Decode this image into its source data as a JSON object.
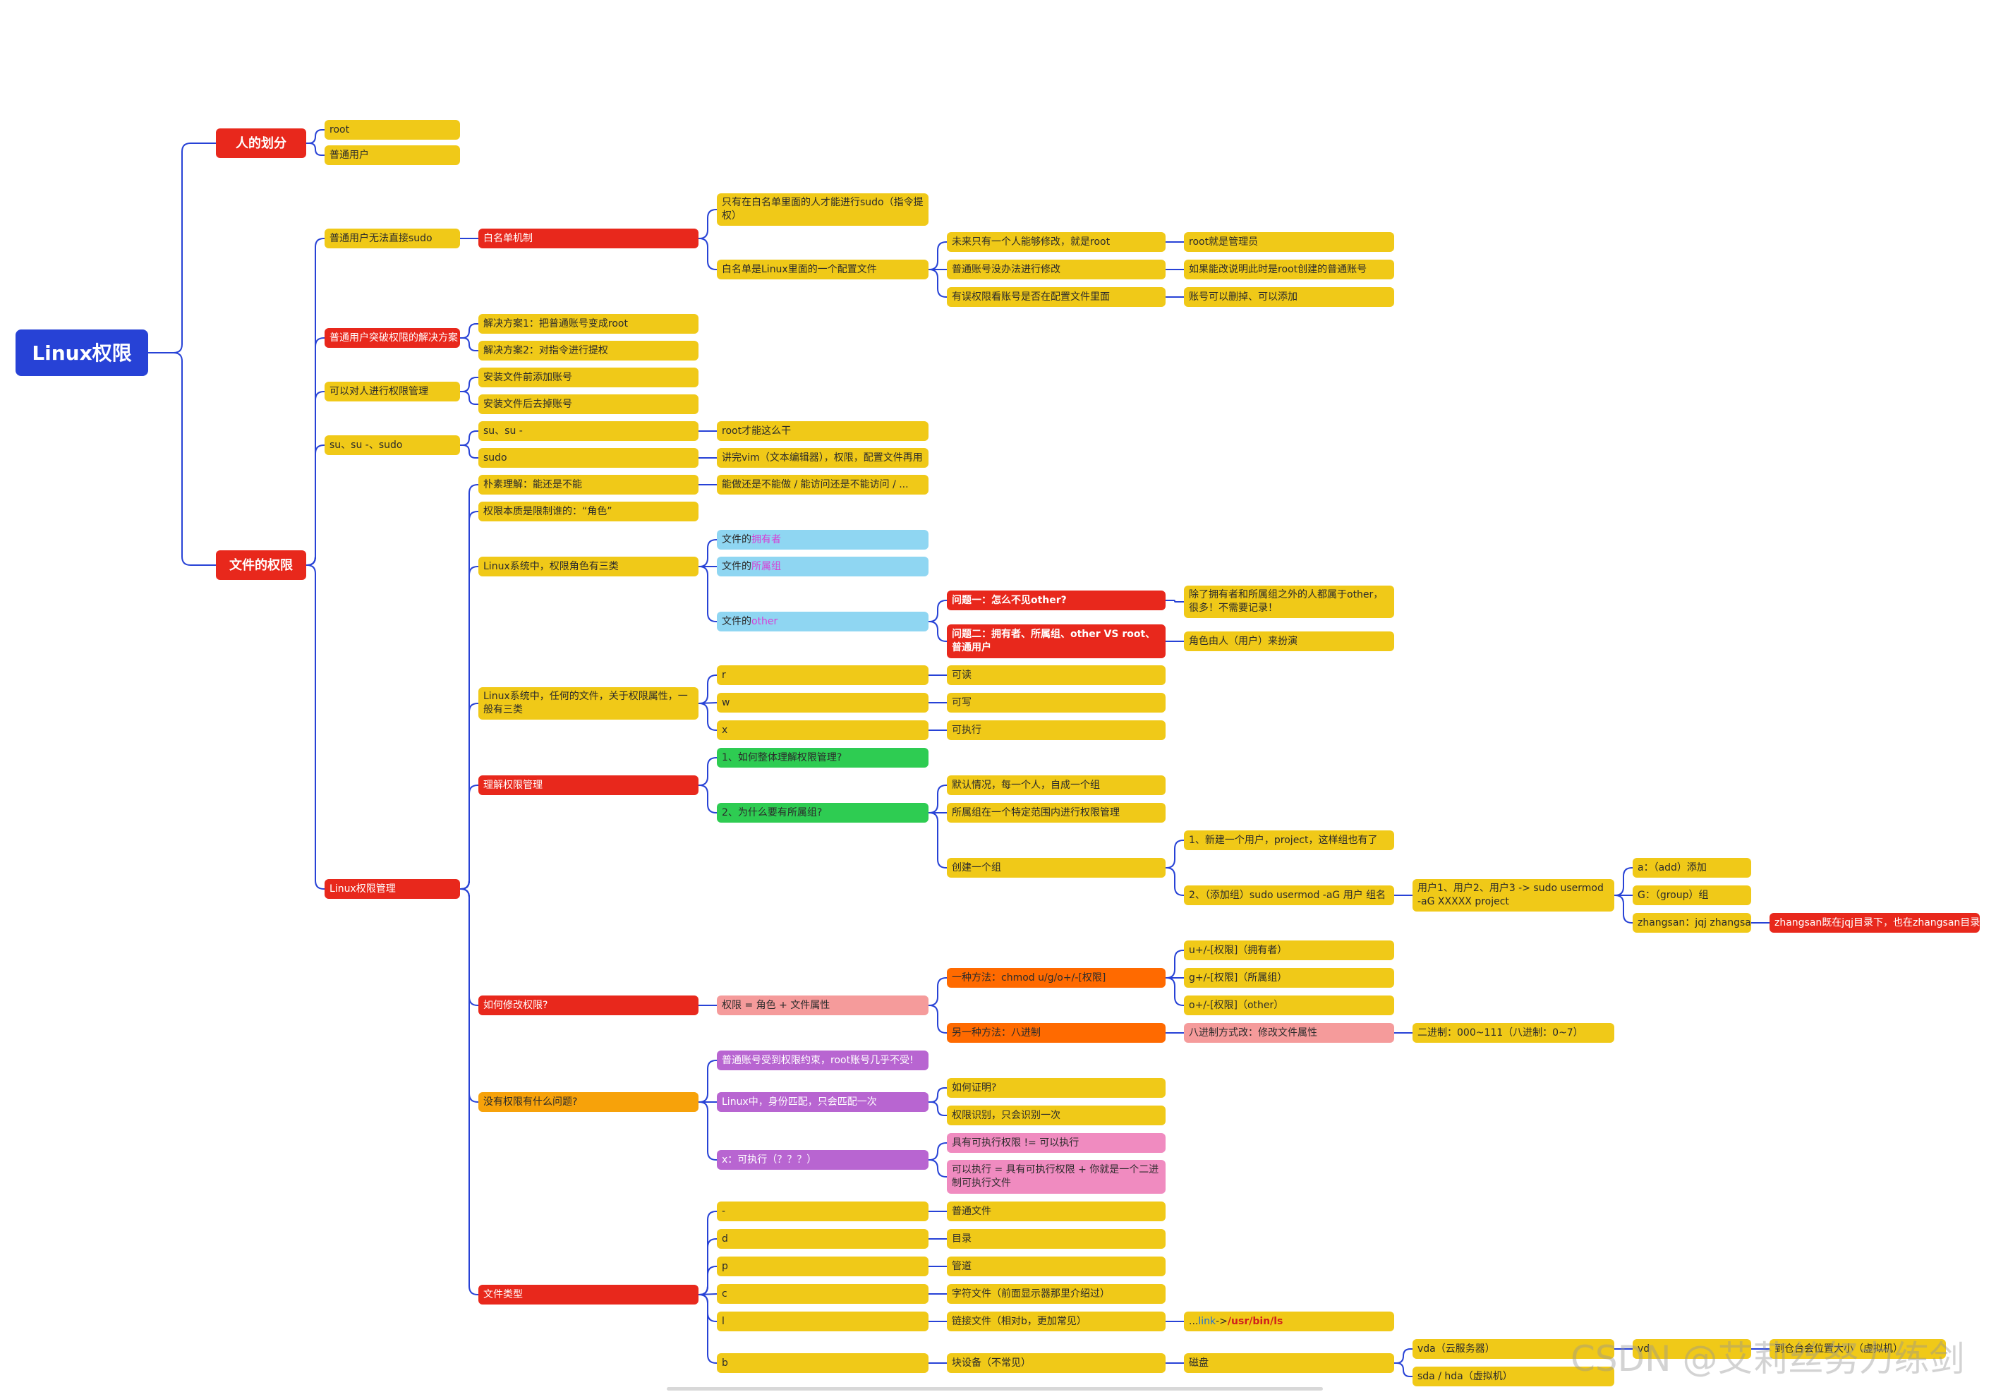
{
  "root": "Linux权限",
  "people": {
    "label": "人的划分",
    "root_user": "root",
    "normal_user": "普通用户"
  },
  "file_perm": {
    "label": "文件的权限",
    "sudo": {
      "label": "普通用户无法直接sudo",
      "whitelist": "白名单机制",
      "only_whitelist": "只有在白名单里面的人才能进行sudo（指令提权）",
      "config_file": "白名单是Linux里面的一个配置文件",
      "future_root": "未来只有一个人能够修改，就是root",
      "root_admin": "root就是管理员",
      "normal_cannot": "普通账号没办法进行修改",
      "created_by_root": "如果能改说明此时是root创建的普通账号",
      "check_config": "有误权限看账号是否在配置文件里面",
      "can_delete_add": "账号可以删掉、可以添加"
    },
    "solution": {
      "label": "普通用户突破权限的解决方案",
      "s1": "解决方案1：把普通账号变成root",
      "s2": "解决方案2：对指令进行提权"
    },
    "manage": {
      "label": "可以对人进行权限管理",
      "add": "安装文件前添加账号",
      "remove": "安装文件后去掉账号"
    },
    "su": {
      "label": "su、su -、sudo",
      "su_item": "su、su -",
      "su_desc": "root才能这么干",
      "sudo_item": "sudo",
      "sudo_desc": "讲完vim（文本编辑器），权限，配置文件再用"
    },
    "linux": {
      "label": "Linux权限管理",
      "simple": "朴素理解：能还是不能",
      "simple_desc": "能做还是不能做 / 能访问还是不能访问 / ...",
      "essence": "权限本质是限制谁的：“角色”",
      "roles": {
        "label": "Linux系统中，权限角色有三类",
        "owner_pre": "文件的",
        "owner_hl": "拥有者",
        "group_pre": "文件的",
        "group_hl": "所属组",
        "other_pre": "文件的",
        "other_hl": "other",
        "q1": "问题一：怎么不见other?",
        "q1_ans": "除了拥有者和所属组之外的人都属于other，很多！不需要记录！",
        "q2": "问题二：拥有者、所属组、other VS root、普通用户",
        "q2_ans": "角色由人（用户）来扮演"
      },
      "attrs": {
        "label": "Linux系统中，任何的文件，关于权限属性，一般有三类",
        "r": "r",
        "r_desc": "可读",
        "w": "w",
        "w_desc": "可写",
        "x": "x",
        "x_desc": "可执行"
      },
      "understand": {
        "label": "理解权限管理",
        "q1": "1、如何整体理解权限管理?",
        "q2": "2、为什么要有所属组?",
        "default": "默认情况，每一个人，自成一个组",
        "group_use": "所属组在一个特定范围内进行权限管理",
        "create": "创建一个组",
        "step1": "1、新建一个用户，project，这样组也有了",
        "step2": "2、（添加组）sudo usermod -aG 用户 组名",
        "cmd": "用户1、用户2、用户3 -> sudo usermod -aG XXXXX project",
        "a_opt": "a：（add）添加",
        "g_opt": "G：（group）组",
        "example": "zhangsan：jqj  zhangsan",
        "example_desc": "zhangsan既在jqj目录下，也在zhangsan目录下"
      },
      "modify": {
        "label": "如何修改权限?",
        "formula": "权限 = 角色 + 文件属性",
        "method1": "一种方法：chmod u/g/o+/-[权限]",
        "u": "u+/-[权限]（拥有者）",
        "g": "g+/-[权限]（所属组）",
        "o": "o+/-[权限]（other）",
        "method2": "另一种方法：八进制",
        "octal": "八进制方式改：修改文件属性",
        "binary": "二进制：000~111（八进制：0~7）"
      },
      "noperm": {
        "label": "没有权限有什么问题?",
        "restricted": "普通账号受到权限约束，root账号几乎不受!",
        "identity": "Linux中，身份匹配，只会匹配一次",
        "prove": "如何证明?",
        "once": "权限识别，只会识别一次",
        "x_q": "x：可执行（？？？）",
        "has_x": "具有可执行权限 != 可以执行",
        "can_exec": "可以执行 = 具有可执行权限 + 你就是一个二进制可执行文件"
      },
      "types": {
        "label": "文件类型",
        "dash": "-",
        "dash_desc": "普通文件",
        "d": "d",
        "d_desc": "目录",
        "p": "p",
        "p_desc": "管道",
        "c": "c",
        "c_desc": "字符文件（前面显示器那里介绍过）",
        "l": "l",
        "l_desc": "链接文件（相对b，更加常见）",
        "l_ex_pre": "... ",
        "l_ex_link": "link",
        "l_ex_arrow": " -> ",
        "l_ex_path": "/usr/bin/ls",
        "b": "b",
        "b_desc": "块设备（不常见）",
        "disk": "磁盘",
        "vda": "vda（云服务器）",
        "sda": "sda / hda（虚拟机）",
        "vd": "vd",
        "vd_desc": "到仓台会位置大小（虚拟机）"
      }
    }
  },
  "watermark": "CSDN @艾莉丝努力练剑"
}
